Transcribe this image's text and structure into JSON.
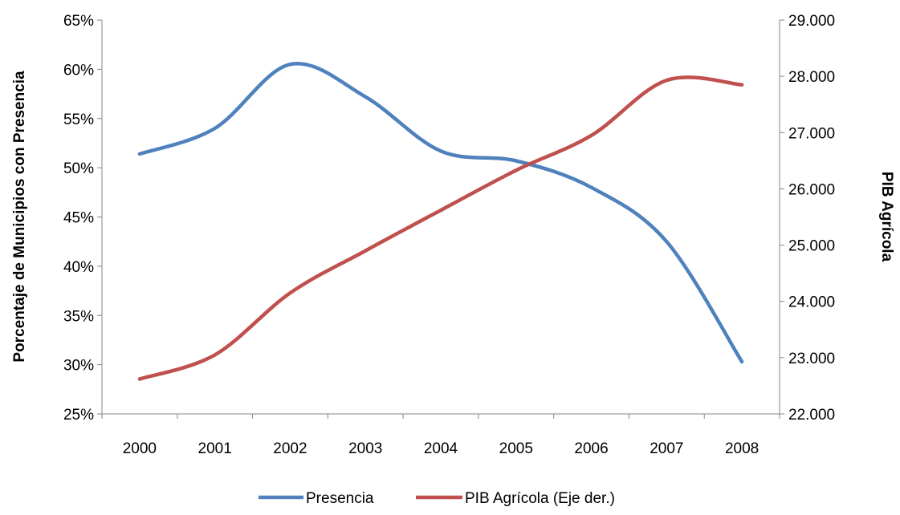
{
  "chart_data": {
    "type": "line",
    "categories": [
      "2000",
      "2001",
      "2002",
      "2003",
      "2004",
      "2005",
      "2006",
      "2007",
      "2008"
    ],
    "ylabel": "Porcentaje de Municipios con Presencia",
    "y2label": "PIB Agrícola",
    "ylim": [
      25,
      65
    ],
    "y2lim": [
      22000,
      29000
    ],
    "yticks": [
      "25%",
      "30%",
      "35%",
      "40%",
      "45%",
      "50%",
      "55%",
      "60%",
      "65%"
    ],
    "y2ticks": [
      "22.000",
      "23.000",
      "24.000",
      "25.000",
      "26.000",
      "27.000",
      "28.000",
      "29.000"
    ],
    "grid": false,
    "legend_position": "bottom",
    "series": [
      {
        "name": "Presencia",
        "axis": "left",
        "color": "#4F81BD",
        "values": [
          51.4,
          54.0,
          60.5,
          57.2,
          51.7,
          50.7,
          48.0,
          42.5,
          30.3
        ]
      },
      {
        "name": "PIB Agrícola (Eje der.)",
        "axis": "right",
        "color": "#C0504D",
        "values": [
          22620,
          23050,
          24150,
          24900,
          25620,
          26330,
          26950,
          27930,
          27850
        ]
      }
    ]
  }
}
